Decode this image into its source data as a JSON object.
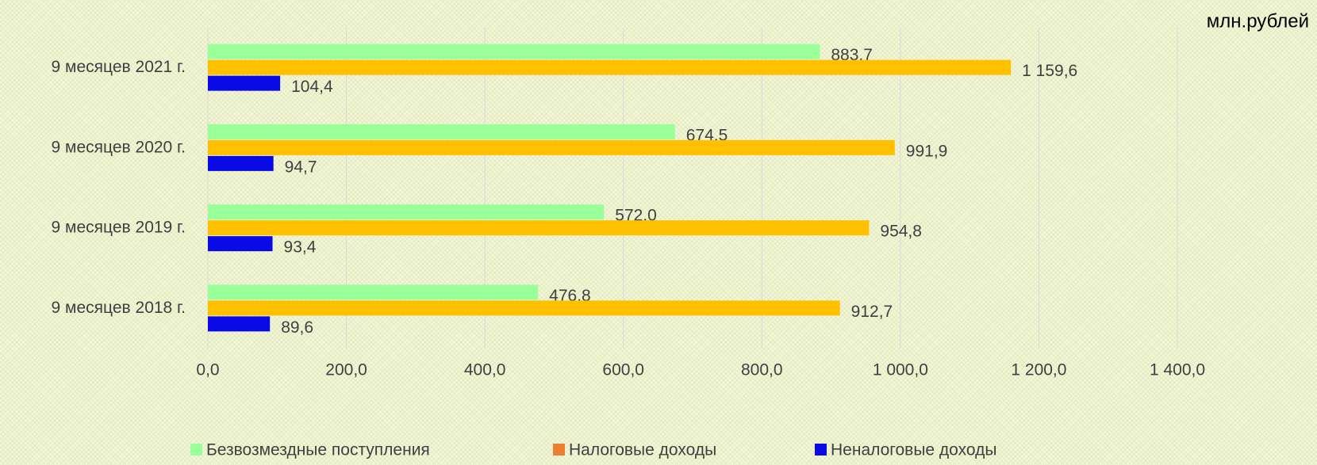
{
  "chart_data": {
    "type": "bar",
    "orientation": "horizontal",
    "unit_note": "млн.рублей",
    "categories": [
      "9 месяцев 2021 г.",
      "9 месяцев 2020 г.",
      "9 месяцев 2019 г.",
      "9 месяцев 2018 г."
    ],
    "series": [
      {
        "name": "Безвозмездные поступления",
        "color": "#99ff99",
        "values": [
          883.7,
          674.5,
          572.0,
          476.8
        ],
        "value_labels": [
          "883,7",
          "674,5",
          "572,0",
          "476,8"
        ]
      },
      {
        "name": "Налоговые доходы",
        "color": "#ffc000",
        "legend_color": "#ed7d31",
        "values": [
          1159.6,
          991.9,
          954.8,
          912.7
        ],
        "value_labels": [
          "1 159,6",
          "991,9",
          "954,8",
          "912,7"
        ]
      },
      {
        "name": "Неналоговые доходы",
        "color": "#0a0ae6",
        "values": [
          104.4,
          94.7,
          93.4,
          89.6
        ],
        "value_labels": [
          "104,4",
          "94,7",
          "93,4",
          "89,6"
        ]
      }
    ],
    "xlim": [
      0,
      1400
    ],
    "xticks": [
      {
        "value": 0,
        "label": "0,0"
      },
      {
        "value": 200,
        "label": "200,0"
      },
      {
        "value": 400,
        "label": "400,0"
      },
      {
        "value": 600,
        "label": "600,0"
      },
      {
        "value": 800,
        "label": "800,0"
      },
      {
        "value": 1000,
        "label": "1 000,0"
      },
      {
        "value": 1200,
        "label": "1 200,0"
      },
      {
        "value": 1400,
        "label": "1 400,0"
      }
    ],
    "grid": true,
    "legend": "bottom"
  }
}
